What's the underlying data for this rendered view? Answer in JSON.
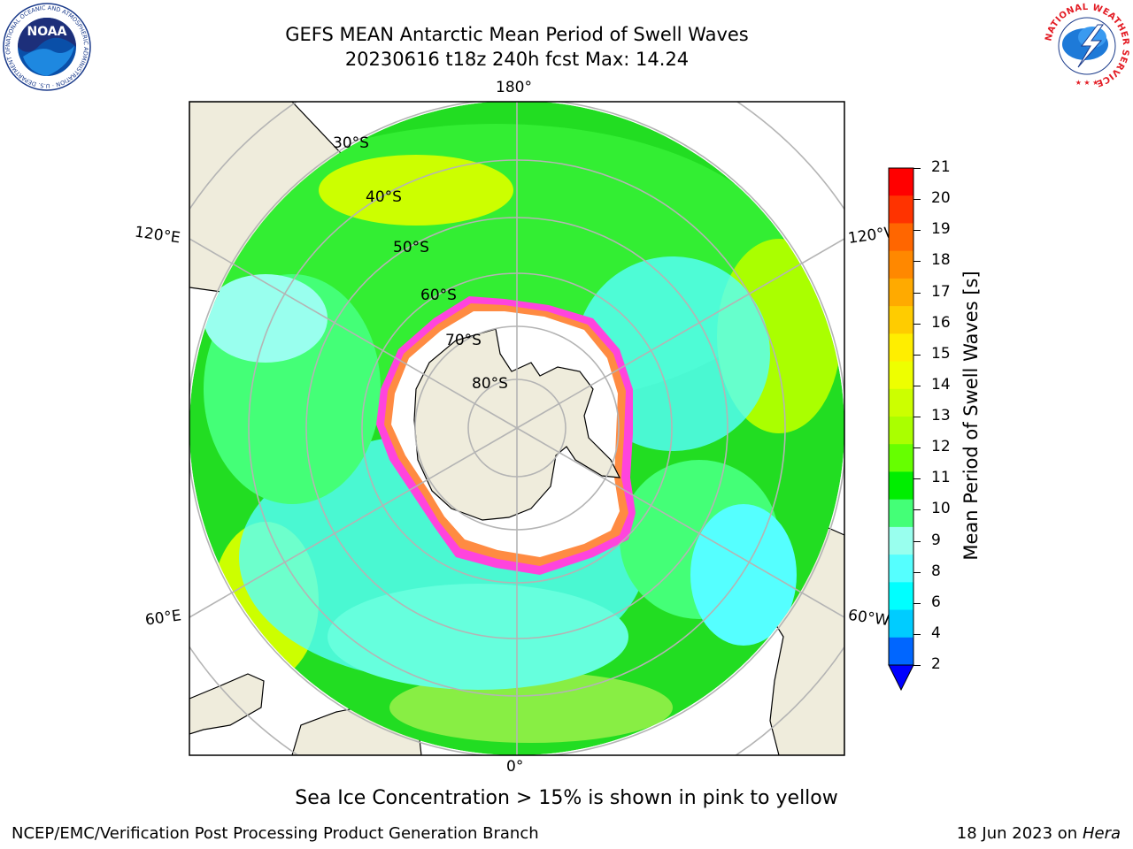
{
  "title": {
    "line1": "GEFS MEAN Antarctic Mean Period of Swell Waves",
    "line2": "20230616 t18z 240h fcst   Max: 14.24"
  },
  "logos": {
    "left": {
      "text": "NOAA",
      "ring_text": "NATIONAL OCEANIC AND ATMOSPHERIC ADMINISTRATION · U.S. DEPARTMENT OF COMMERCE"
    },
    "right": {
      "ring_text": "NATIONAL WEATHER SERVICE"
    }
  },
  "map": {
    "projection": "south polar stereographic",
    "longitude_labels": {
      "top": "180°",
      "bottom": "0°",
      "upper_left": "120°E",
      "upper_right": "120°W",
      "lower_left": "60°E",
      "lower_right": "60°W"
    },
    "latitude_labels": [
      "30°S",
      "40°S",
      "50°S",
      "60°S",
      "70°S",
      "80°S"
    ],
    "colors": {
      "land": "#efecdc",
      "ice": "#ffffff",
      "grid": "#b4b4b4"
    }
  },
  "colorbar": {
    "label": "Mean Period of Swell Waves [s]",
    "ticks": [
      "21",
      "20",
      "19",
      "18",
      "17",
      "16",
      "15",
      "14",
      "13",
      "12",
      "11",
      "10",
      "9",
      "8",
      "6",
      "4",
      "2"
    ],
    "colors_top_to_bottom": [
      "#ff0000",
      "#ff3300",
      "#ff6600",
      "#ff8800",
      "#ffaa00",
      "#ffcc00",
      "#ffee00",
      "#eeff00",
      "#ccff00",
      "#aaff00",
      "#66ff00",
      "#00ee00",
      "#44ff77",
      "#99ffee",
      "#55ffff",
      "#00ffff",
      "#00ccff",
      "#0066ff"
    ],
    "extend_color": "#0000ff"
  },
  "caption": "Sea Ice Concentration > 15% is shown in pink to yellow",
  "credits": {
    "left": "NCEP/EMC/Verification Post Processing Product Generation Branch",
    "right_date": "18 Jun 2023 on",
    "right_host": "Hera"
  }
}
